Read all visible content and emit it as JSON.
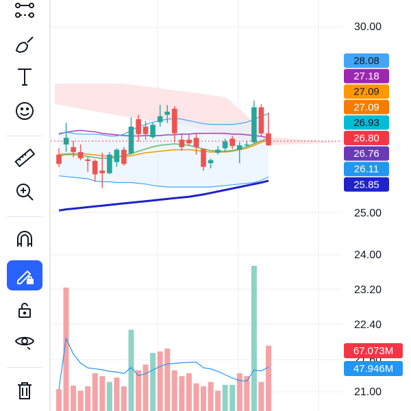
{
  "toolbar": {
    "tools": [
      {
        "name": "trend-line-tool-icon"
      },
      {
        "name": "brush-tool-icon"
      },
      {
        "name": "text-tool-icon"
      },
      {
        "name": "emoji-tool-icon"
      },
      {
        "name": "ruler-tool-icon"
      },
      {
        "name": "zoom-in-tool-icon"
      },
      {
        "name": "magnet-icon"
      },
      {
        "name": "lock-drawings-icon",
        "active": true
      },
      {
        "name": "unlock-icon"
      },
      {
        "name": "eye-icon"
      },
      {
        "name": "trash-icon"
      }
    ],
    "accent": "#2962ff"
  },
  "axis": {
    "main": [
      "30.00",
      "25.00",
      "24.00"
    ],
    "volume": [
      "23.20",
      "22.40",
      "21.60",
      "21.00"
    ]
  },
  "tags": [
    {
      "text": "28.08",
      "bg": "#42a5f5",
      "fg": "#131722"
    },
    {
      "text": "27.18",
      "bg": "#9c27b0",
      "fg": "#ffffff"
    },
    {
      "text": "27.09",
      "bg": "#ff9800",
      "fg": "#131722"
    },
    {
      "text": "27.09",
      "bg": "#f57c00",
      "fg": "#ffffff"
    },
    {
      "text": "26.93",
      "bg": "#00bcd4",
      "fg": "#131722"
    },
    {
      "text": "26.80",
      "bg": "#f23645",
      "fg": "#ffffff"
    },
    {
      "text": "26.76",
      "bg": "#673ab7",
      "fg": "#ffffff"
    },
    {
      "text": "26.11",
      "bg": "#2196f3",
      "fg": "#ffffff"
    },
    {
      "text": "25.85",
      "bg": "#1e22c8",
      "fg": "#ffffff"
    }
  ],
  "volume_tags": [
    {
      "text": "67.073M",
      "bg": "#f23645",
      "fg": "#ffffff"
    },
    {
      "text": "47.946M",
      "bg": "#2196f3",
      "fg": "#ffffff"
    }
  ],
  "colors": {
    "up": "#26a69a",
    "down": "#ef5350",
    "up_vol": "#8fd3c7",
    "down_vol": "#f5a3a6"
  },
  "chart_data": {
    "type": "candlestick",
    "candles": [
      {
        "o": 26.55,
        "h": 26.72,
        "l": 26.22,
        "c": 26.3
      },
      {
        "o": 26.82,
        "h": 27.4,
        "l": 26.62,
        "c": 27.0
      },
      {
        "o": 26.75,
        "h": 26.92,
        "l": 26.48,
        "c": 26.62
      },
      {
        "o": 26.62,
        "h": 26.82,
        "l": 26.4,
        "c": 26.45
      },
      {
        "o": 26.42,
        "h": 26.48,
        "l": 26.08,
        "c": 26.38
      },
      {
        "o": 26.38,
        "h": 26.42,
        "l": 25.82,
        "c": 26.02
      },
      {
        "o": 26.12,
        "h": 26.6,
        "l": 25.65,
        "c": 26.05
      },
      {
        "o": 26.05,
        "h": 26.62,
        "l": 26.02,
        "c": 26.55
      },
      {
        "o": 26.35,
        "h": 26.72,
        "l": 26.22,
        "c": 26.68
      },
      {
        "o": 26.68,
        "h": 26.75,
        "l": 26.25,
        "c": 26.3
      },
      {
        "o": 26.58,
        "h": 27.55,
        "l": 26.55,
        "c": 27.3
      },
      {
        "o": 27.5,
        "h": 27.62,
        "l": 26.9,
        "c": 27.1
      },
      {
        "o": 27.3,
        "h": 27.45,
        "l": 26.95,
        "c": 27.1
      },
      {
        "o": 27.02,
        "h": 27.42,
        "l": 26.98,
        "c": 27.35
      },
      {
        "o": 27.42,
        "h": 27.88,
        "l": 27.3,
        "c": 27.58
      },
      {
        "o": 27.62,
        "h": 27.88,
        "l": 27.4,
        "c": 27.7
      },
      {
        "o": 27.78,
        "h": 27.85,
        "l": 26.88,
        "c": 27.12
      },
      {
        "o": 26.95,
        "h": 27.12,
        "l": 26.65,
        "c": 26.75
      },
      {
        "o": 26.95,
        "h": 27.08,
        "l": 26.78,
        "c": 26.85
      },
      {
        "o": 27.0,
        "h": 27.12,
        "l": 26.55,
        "c": 26.75
      },
      {
        "o": 26.7,
        "h": 26.72,
        "l": 26.12,
        "c": 26.22
      },
      {
        "o": 26.32,
        "h": 26.45,
        "l": 26.18,
        "c": 26.4
      },
      {
        "o": 26.6,
        "h": 26.78,
        "l": 26.55,
        "c": 26.68
      },
      {
        "o": 26.72,
        "h": 26.98,
        "l": 26.62,
        "c": 26.9
      },
      {
        "o": 26.98,
        "h": 27.05,
        "l": 26.7,
        "c": 26.78
      },
      {
        "o": 26.68,
        "h": 26.88,
        "l": 26.32,
        "c": 26.8
      },
      {
        "o": 26.82,
        "h": 26.9,
        "l": 26.75,
        "c": 26.82
      },
      {
        "o": 26.88,
        "h": 28.0,
        "l": 26.85,
        "c": 27.82
      },
      {
        "o": 27.82,
        "h": 27.9,
        "l": 27.05,
        "c": 27.12
      },
      {
        "o": 27.12,
        "h": 27.68,
        "l": 26.78,
        "c": 26.8
      }
    ],
    "volume": [
      {
        "v": 30,
        "up": false
      },
      {
        "v": 170,
        "up": false
      },
      {
        "v": 35,
        "up": false
      },
      {
        "v": 28,
        "up": false
      },
      {
        "v": 34,
        "up": false
      },
      {
        "v": 52,
        "up": false
      },
      {
        "v": 48,
        "up": false
      },
      {
        "v": 40,
        "up": true
      },
      {
        "v": 46,
        "up": false
      },
      {
        "v": 34,
        "up": false
      },
      {
        "v": 112,
        "up": true
      },
      {
        "v": 56,
        "up": false
      },
      {
        "v": 64,
        "up": false
      },
      {
        "v": 80,
        "up": true
      },
      {
        "v": 82,
        "up": false
      },
      {
        "v": 86,
        "up": false
      },
      {
        "v": 56,
        "up": false
      },
      {
        "v": 48,
        "up": false
      },
      {
        "v": 52,
        "up": false
      },
      {
        "v": 38,
        "up": false
      },
      {
        "v": 34,
        "up": false
      },
      {
        "v": 40,
        "up": false
      },
      {
        "v": 28,
        "up": false
      },
      {
        "v": 36,
        "up": true
      },
      {
        "v": 36,
        "up": true
      },
      {
        "v": 52,
        "up": false
      },
      {
        "v": 48,
        "up": false
      },
      {
        "v": 200,
        "up": true
      },
      {
        "v": 40,
        "up": false
      },
      {
        "v": 90,
        "up": false
      }
    ],
    "lines": [
      {
        "name": "ma-purple",
        "color": "#ab47bc",
        "values": [
          27.1,
          27.15,
          27.18,
          27.2,
          27.18,
          27.16,
          27.12,
          27.1,
          27.08,
          27.06,
          27.05,
          27.05,
          27.06,
          27.06,
          27.06,
          27.08,
          27.08,
          27.1,
          27.1,
          27.12,
          27.12,
          27.12,
          27.12,
          27.12,
          27.1,
          27.1,
          27.08,
          27.06,
          27.04,
          27.0
        ]
      },
      {
        "name": "ma-orange",
        "color": "#ff9800",
        "values": [
          26.55,
          26.57,
          26.58,
          26.58,
          26.56,
          26.54,
          26.52,
          26.5,
          26.5,
          26.5,
          26.52,
          26.56,
          26.6,
          26.62,
          26.64,
          26.66,
          26.68,
          26.68,
          26.68,
          26.66,
          26.64,
          26.62,
          26.62,
          26.62,
          26.64,
          26.68,
          26.72,
          26.8,
          26.88,
          26.95
        ]
      },
      {
        "name": "ma-green",
        "color": "#66bb6a",
        "values": [
          26.52,
          26.55,
          26.55,
          26.53,
          26.5,
          26.47,
          26.45,
          26.45,
          26.48,
          26.52,
          26.58,
          26.64,
          26.7,
          26.76,
          26.8,
          26.82,
          26.84,
          26.82,
          26.8,
          26.75,
          26.7,
          26.66,
          26.64,
          26.64,
          26.66,
          26.7,
          26.76,
          26.84,
          26.92,
          27.0
        ]
      },
      {
        "name": "bb-upper",
        "color": "#42a5f5",
        "values": [
          27.12,
          27.15,
          27.12,
          27.1,
          27.1,
          27.1,
          27.08,
          27.05,
          27.05,
          27.1,
          27.2,
          27.3,
          27.36,
          27.42,
          27.46,
          27.5,
          27.52,
          27.5,
          27.46,
          27.42,
          27.38,
          27.36,
          27.36,
          27.36,
          27.36,
          27.38,
          27.42,
          27.5,
          27.58,
          27.65
        ]
      },
      {
        "name": "bb-lower",
        "color": "#42a5f5",
        "values": [
          25.98,
          25.96,
          25.94,
          25.92,
          25.9,
          25.84,
          25.82,
          25.82,
          25.8,
          25.8,
          25.8,
          25.78,
          25.76,
          25.72,
          25.7,
          25.68,
          25.68,
          25.68,
          25.68,
          25.68,
          25.68,
          25.68,
          25.7,
          25.72,
          25.74,
          25.76,
          25.78,
          25.8,
          25.86,
          25.95
        ]
      },
      {
        "name": "long-ma",
        "color": "#1e22c8",
        "values": [
          25.05,
          25.08,
          25.1,
          25.12,
          25.14,
          25.16,
          25.18,
          25.2,
          25.22,
          25.24,
          25.26,
          25.28,
          25.3,
          25.32,
          25.34,
          25.36,
          25.38,
          25.4,
          25.42,
          25.45,
          25.48,
          25.52,
          25.56,
          25.6,
          25.64,
          25.68,
          25.72,
          25.76,
          25.8,
          25.85
        ]
      }
    ]
  }
}
